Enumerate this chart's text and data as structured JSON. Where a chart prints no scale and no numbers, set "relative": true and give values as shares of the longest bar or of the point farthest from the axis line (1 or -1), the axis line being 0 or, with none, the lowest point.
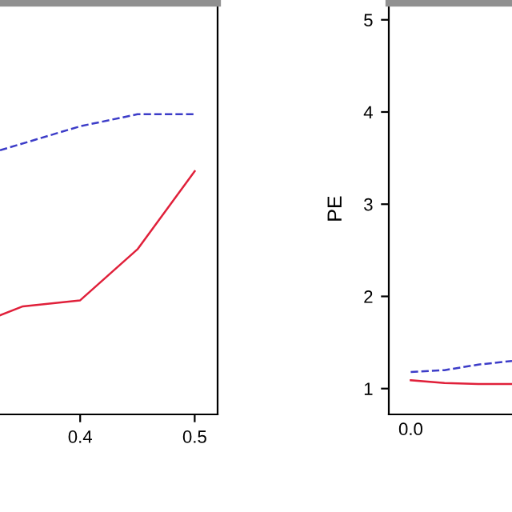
{
  "chart_data": [
    {
      "type": "line",
      "relative": true,
      "xlim": [
        0.33,
        0.52
      ],
      "xticks": [
        0.4,
        0.5
      ],
      "tick_labels": "x",
      "grid": false,
      "legend": false,
      "series": [
        {
          "color": "#3c3cc8",
          "line_style": "dashed",
          "x": [
            0.33,
            0.4,
            0.45,
            0.5
          ],
          "values": [
            0.88,
            0.96,
            1,
            1
          ]
        },
        {
          "color": "#e0203a",
          "line_style": "solid",
          "x": [
            0.33,
            0.35,
            0.4,
            0.45,
            0.5
          ],
          "values": [
            0.33,
            0.36,
            0.38,
            0.55,
            0.81
          ]
        }
      ]
    },
    {
      "type": "line",
      "ylabel": "PE",
      "categories": [
        "0.0",
        null,
        null,
        null
      ],
      "ylim": [
        0.72,
        5.18
      ],
      "yticks": [
        1,
        2,
        3,
        4,
        5
      ],
      "grid": false,
      "legend": false,
      "series": [
        {
          "color": "#3c3cc8",
          "line_style": "dashed",
          "values": [
            1.18,
            1.2,
            1.26,
            1.3
          ]
        },
        {
          "color": "#e0203a",
          "line_style": "solid",
          "values": [
            1.09,
            1.06,
            1.05,
            1.05
          ]
        }
      ]
    }
  ]
}
